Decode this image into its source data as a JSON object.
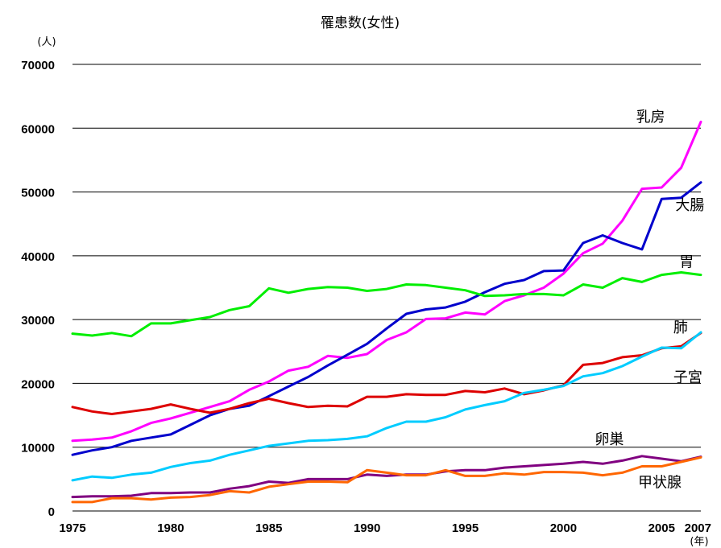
{
  "chart_data": {
    "type": "line",
    "title": "罹患数(女性)",
    "y_unit": "(人)",
    "x_unit": "(年)",
    "ylim": [
      0,
      70000
    ],
    "y_ticks": [
      0,
      10000,
      20000,
      30000,
      40000,
      50000,
      60000,
      70000
    ],
    "xlim": [
      1975,
      2007
    ],
    "x_ticks": [
      1975,
      1980,
      1985,
      1990,
      1995,
      2000,
      2005,
      2007
    ],
    "grid": "horizontal",
    "x": [
      1975,
      1976,
      1977,
      1978,
      1979,
      1980,
      1981,
      1982,
      1983,
      1984,
      1985,
      1986,
      1987,
      1988,
      1989,
      1990,
      1991,
      1992,
      1993,
      1994,
      1995,
      1996,
      1997,
      1998,
      1999,
      2000,
      2001,
      2002,
      2003,
      2004,
      2005,
      2006,
      2007
    ],
    "series": [
      {
        "name": "乳房",
        "color": "#ff00ff",
        "label_x": 2003.7,
        "label_y": 61000,
        "values": [
          11000,
          11200,
          11500,
          12500,
          13800,
          14500,
          15400,
          16300,
          17200,
          19000,
          20300,
          22000,
          22600,
          24300,
          24000,
          24600,
          26800,
          28000,
          30100,
          30200,
          31100,
          30800,
          32900,
          33800,
          35000,
          37200,
          40400,
          41900,
          45500,
          50500,
          50700,
          53800,
          61000
        ]
      },
      {
        "name": "大腸",
        "color": "#0000cc",
        "label_x": 2005.7,
        "label_y": 47200,
        "values": [
          8800,
          9500,
          10000,
          11000,
          11500,
          12000,
          13500,
          15000,
          16000,
          16500,
          18000,
          19500,
          21000,
          22800,
          24500,
          26200,
          28600,
          30900,
          31600,
          31900,
          32800,
          34300,
          35600,
          36200,
          37600,
          37700,
          42000,
          43200,
          42000,
          41000,
          48900,
          49100,
          51500
        ]
      },
      {
        "name": "胃",
        "color": "#00ee00",
        "label_x": 2005.9,
        "label_y": 38300,
        "values": [
          27800,
          27500,
          27900,
          27400,
          29400,
          29400,
          29900,
          30400,
          31500,
          32100,
          34900,
          34200,
          34800,
          35100,
          35000,
          34500,
          34800,
          35500,
          35400,
          35000,
          34600,
          33700,
          33800,
          34000,
          34000,
          33800,
          35500,
          35000,
          36500,
          35900,
          37000,
          37400,
          37000
        ]
      },
      {
        "name": "肺",
        "color": "#dd0000",
        "label_x": 2005.6,
        "label_y": 28000,
        "values": [
          16300,
          15600,
          15200,
          15600,
          16000,
          16700,
          16000,
          15400,
          16000,
          16900,
          17600,
          16900,
          16300,
          16500,
          16400,
          17900,
          17900,
          18300,
          18200,
          18200,
          18800,
          18600,
          19200,
          18300,
          18900,
          19700,
          22900,
          23200,
          24100,
          24400,
          25500,
          25800,
          27900
        ]
      },
      {
        "name": "子宮",
        "color": "#00ccff",
        "label_x": 2005.6,
        "label_y": 20200,
        "values": [
          4800,
          5400,
          5200,
          5700,
          6000,
          6900,
          7500,
          7900,
          8800,
          9500,
          10200,
          10600,
          11000,
          11100,
          11300,
          11700,
          13000,
          14000,
          14000,
          14700,
          15900,
          16600,
          17200,
          18500,
          19000,
          19600,
          21100,
          21600,
          22700,
          24200,
          25600,
          25500,
          28000
        ]
      },
      {
        "name": "卵巣",
        "color": "#800080",
        "label_x": 2001.6,
        "label_y": 10500,
        "values": [
          2200,
          2300,
          2300,
          2400,
          2800,
          2800,
          2900,
          2900,
          3500,
          3900,
          4600,
          4400,
          5000,
          5000,
          5000,
          5700,
          5500,
          5700,
          5700,
          6200,
          6400,
          6400,
          6800,
          7000,
          7200,
          7400,
          7700,
          7400,
          7900,
          8600,
          8200,
          7800,
          8500
        ]
      },
      {
        "name": "甲状腺",
        "color": "#ff6600",
        "label_x": 2003.8,
        "label_y": 3700,
        "values": [
          1400,
          1400,
          2000,
          2000,
          1800,
          2100,
          2200,
          2500,
          3100,
          2900,
          3800,
          4200,
          4600,
          4600,
          4500,
          6400,
          6000,
          5600,
          5600,
          6400,
          5500,
          5500,
          5900,
          5700,
          6100,
          6100,
          6000,
          5600,
          6000,
          7000,
          7000,
          7700,
          8400
        ]
      }
    ]
  }
}
